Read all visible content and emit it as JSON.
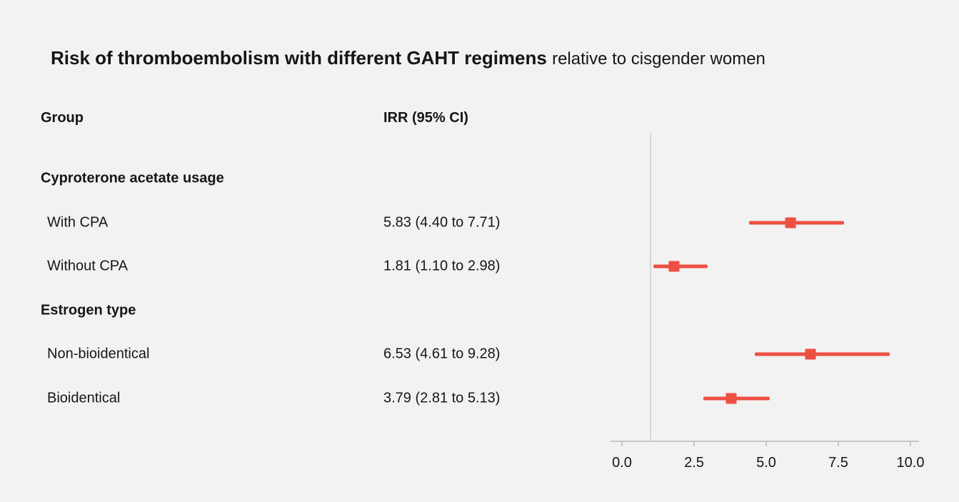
{
  "title": {
    "main": "Risk of thromboembolism with different GAHT regimens",
    "suffix": "relative to cisgender women"
  },
  "columns": {
    "group": "Group",
    "irr": "IRR (95% CI)"
  },
  "colors": {
    "background": "#f2f2f2",
    "accent": "#ee4f43",
    "grid": "#c7c7c7",
    "reference_line": "#d7d7d7",
    "text": "#161616"
  },
  "chart_data": {
    "type": "forest",
    "title": "Risk of thromboembolism with different GAHT regimens relative to cisgender women",
    "xlabel": "",
    "ylabel": "",
    "x_axis": {
      "range": [
        0,
        10
      ],
      "tick_values": [
        0,
        2.5,
        5,
        7.5,
        10
      ],
      "tick_labels": [
        "0.0",
        "2.5",
        "5.0",
        "7.5",
        "10.0"
      ]
    },
    "reference_line": 1.0,
    "legend": "none",
    "grid": "off",
    "groups": [
      {
        "header": "Cyproterone acetate usage",
        "items": [
          {
            "label": "With CPA",
            "estimate": 5.83,
            "ci_low": 4.4,
            "ci_high": 7.71,
            "display": "5.83 (4.40 to 7.71)"
          },
          {
            "label": "Without CPA",
            "estimate": 1.81,
            "ci_low": 1.1,
            "ci_high": 2.98,
            "display": "1.81 (1.10 to 2.98)"
          }
        ]
      },
      {
        "header": "Estrogen type",
        "items": [
          {
            "label": "Non-bioidentical",
            "estimate": 6.53,
            "ci_low": 4.61,
            "ci_high": 9.28,
            "display": "6.53 (4.61 to 9.28)"
          },
          {
            "label": "Bioidentical",
            "estimate": 3.79,
            "ci_low": 2.81,
            "ci_high": 5.13,
            "display": "3.79 (2.81 to 5.13)"
          }
        ]
      }
    ]
  }
}
